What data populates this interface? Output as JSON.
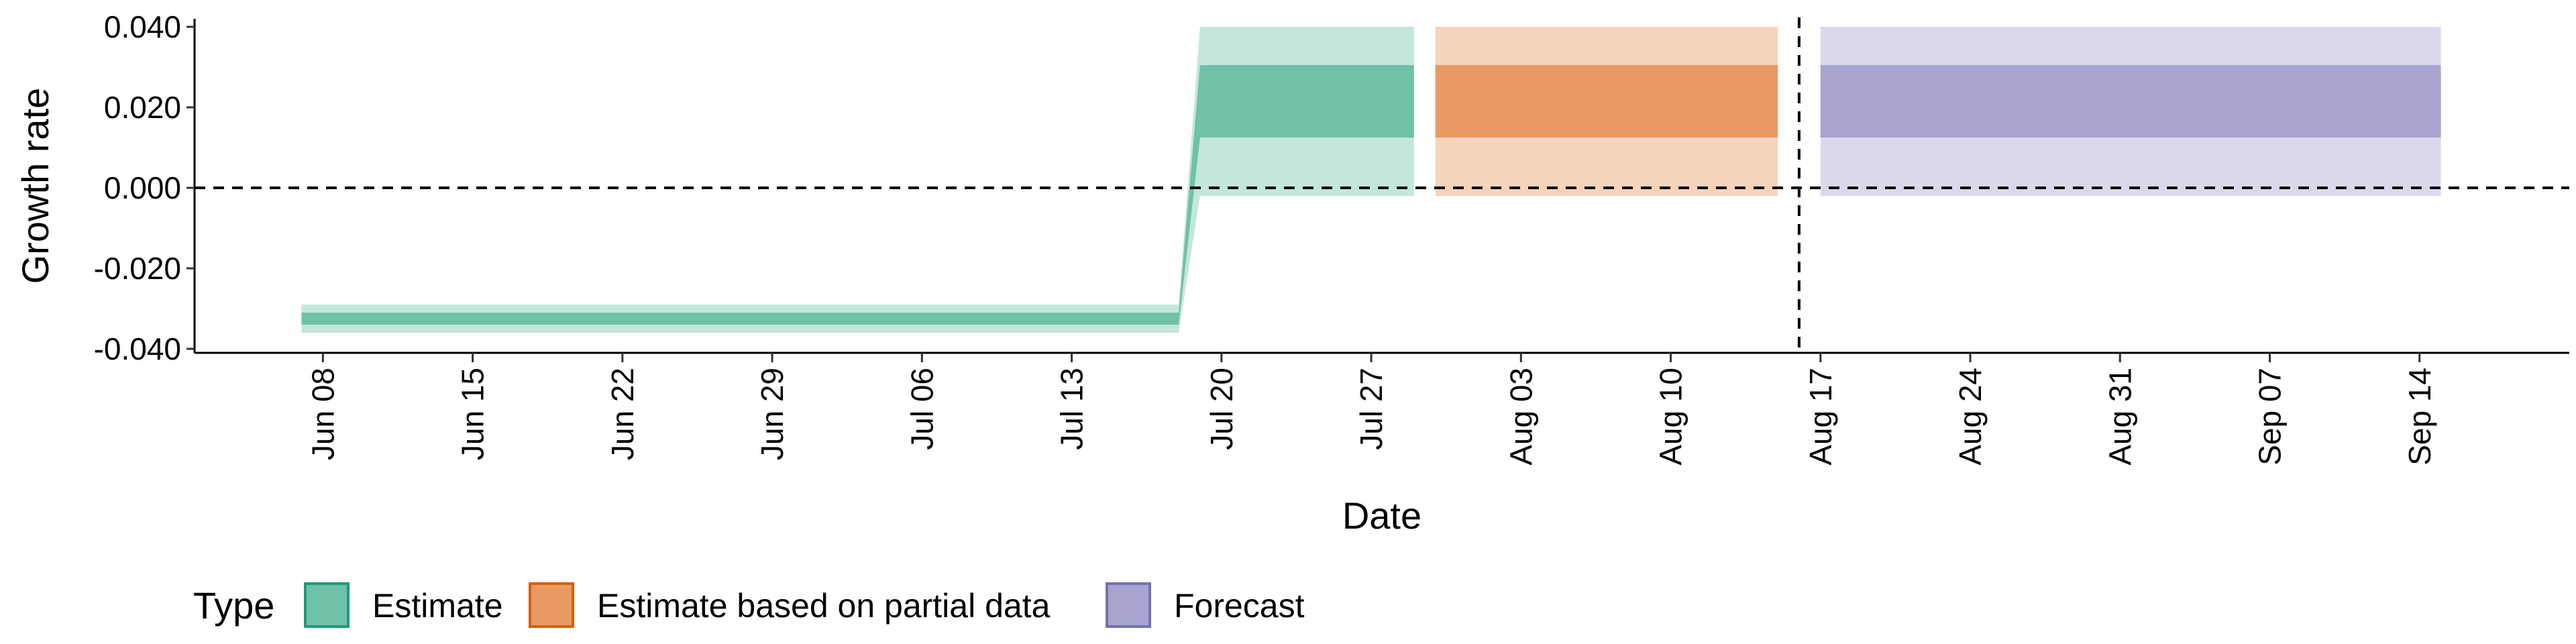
{
  "chart_data": {
    "type": "area",
    "title": "",
    "xlabel": "Date",
    "ylabel": "Growth rate",
    "x_range": [
      "2020-06-02",
      "2020-09-21"
    ],
    "ylim": [
      -0.041,
      0.042
    ],
    "y_ticks": [
      {
        "value": -0.04,
        "label": "-0.040"
      },
      {
        "value": -0.02,
        "label": "-0.020"
      },
      {
        "value": 0.0,
        "label": "0.000"
      },
      {
        "value": 0.02,
        "label": "0.020"
      },
      {
        "value": 0.04,
        "label": "0.040"
      }
    ],
    "x_ticks": [
      {
        "date": "2020-06-08",
        "label": "Jun 08"
      },
      {
        "date": "2020-06-15",
        "label": "Jun 15"
      },
      {
        "date": "2020-06-22",
        "label": "Jun 22"
      },
      {
        "date": "2020-06-29",
        "label": "Jun 29"
      },
      {
        "date": "2020-07-06",
        "label": "Jul 06"
      },
      {
        "date": "2020-07-13",
        "label": "Jul 13"
      },
      {
        "date": "2020-07-20",
        "label": "Jul 20"
      },
      {
        "date": "2020-07-27",
        "label": "Jul 27"
      },
      {
        "date": "2020-08-03",
        "label": "Aug 03"
      },
      {
        "date": "2020-08-10",
        "label": "Aug 10"
      },
      {
        "date": "2020-08-17",
        "label": "Aug 17"
      },
      {
        "date": "2020-08-24",
        "label": "Aug 24"
      },
      {
        "date": "2020-08-31",
        "label": "Aug 31"
      },
      {
        "date": "2020-09-07",
        "label": "Sep 07"
      },
      {
        "date": "2020-09-14",
        "label": "Sep 14"
      }
    ],
    "grid": false,
    "reference_lines": {
      "horizontal_y": 0.0,
      "vertical_date": "2020-08-16",
      "style": "dashed"
    },
    "legend": {
      "title": "Type",
      "position": "bottom-left",
      "entries": [
        {
          "label": "Estimate",
          "fill": "#6fc1a8",
          "border": "#1b9e77"
        },
        {
          "label": "Estimate based on partial data",
          "fill": "#e89a62",
          "border": "#d95f02"
        },
        {
          "label": "Forecast",
          "fill": "#a8a4cf",
          "border": "#7570b3"
        }
      ]
    },
    "series": [
      {
        "name": "Estimate",
        "inner_color": "#6fc1a8",
        "outer_color": "#c4e6dc",
        "points": [
          {
            "date": "2020-06-07",
            "lower_90": -0.036,
            "lower_50": -0.034,
            "upper_50": -0.031,
            "upper_90": -0.029
          },
          {
            "date": "2020-07-18",
            "lower_90": -0.036,
            "lower_50": -0.034,
            "upper_50": -0.031,
            "upper_90": -0.029
          },
          {
            "date": "2020-07-19",
            "lower_90": -0.002,
            "lower_50": 0.0125,
            "upper_50": 0.0305,
            "upper_90": 0.04
          },
          {
            "date": "2020-07-29",
            "lower_90": -0.002,
            "lower_50": 0.0125,
            "upper_50": 0.0305,
            "upper_90": 0.04
          }
        ]
      },
      {
        "name": "Estimate based on partial data",
        "inner_color": "#e89a62",
        "outer_color": "#f6d4bc",
        "points": [
          {
            "date": "2020-07-30",
            "lower_90": -0.002,
            "lower_50": 0.0125,
            "upper_50": 0.0305,
            "upper_90": 0.04
          },
          {
            "date": "2020-08-15",
            "lower_90": -0.002,
            "lower_50": 0.0125,
            "upper_50": 0.0305,
            "upper_90": 0.04
          }
        ]
      },
      {
        "name": "Forecast",
        "inner_color": "#a8a4cf",
        "outer_color": "#dad9ec",
        "points": [
          {
            "date": "2020-08-17",
            "lower_90": -0.002,
            "lower_50": 0.0125,
            "upper_50": 0.0305,
            "upper_90": 0.04
          },
          {
            "date": "2020-09-15",
            "lower_90": -0.002,
            "lower_50": 0.0125,
            "upper_50": 0.0305,
            "upper_90": 0.04
          }
        ]
      }
    ]
  }
}
